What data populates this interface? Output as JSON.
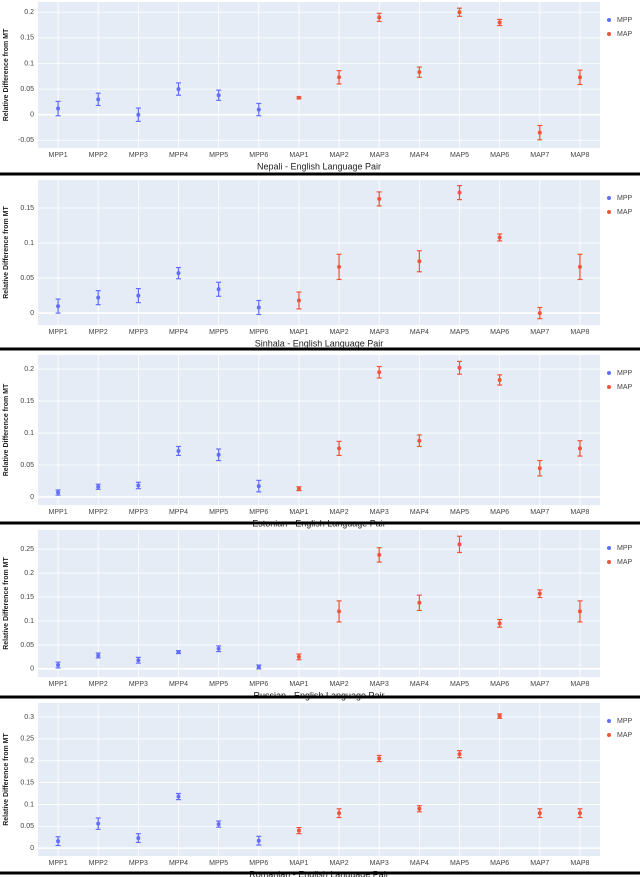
{
  "chart_data": [
    {
      "type": "errorbar",
      "x_label": "Nepali - English Language Pair",
      "y_label": "Relative Difference from MT",
      "categories": [
        "MPP1",
        "MPP2",
        "MPP3",
        "MPP4",
        "MPP5",
        "MPP6",
        "MAP1",
        "MAP2",
        "MAP3",
        "MAP4",
        "MAP5",
        "MAP6",
        "MAP7",
        "MAP8"
      ],
      "series": [
        {
          "name": "MPP",
          "color": "#636efa",
          "values": [
            0.012,
            0.03,
            0.0,
            0.05,
            0.038,
            0.01,
            null,
            null,
            null,
            null,
            null,
            null,
            null,
            null
          ],
          "errors": [
            0.014,
            0.012,
            0.013,
            0.012,
            0.01,
            0.012,
            null,
            null,
            null,
            null,
            null,
            null,
            null,
            null
          ]
        },
        {
          "name": "MAP",
          "color": "#ef553b",
          "values": [
            null,
            null,
            null,
            null,
            null,
            null,
            0.033,
            0.073,
            0.19,
            0.083,
            0.2,
            0.18,
            -0.035,
            0.073
          ],
          "errors": [
            null,
            null,
            null,
            null,
            null,
            null,
            0.002,
            0.013,
            0.008,
            0.01,
            0.008,
            0.006,
            0.014,
            0.014
          ]
        }
      ],
      "ylim": [
        -0.065,
        0.22
      ],
      "yticks": [
        -0.05,
        0,
        0.05,
        0.1,
        0.15,
        0.2
      ],
      "grid": true,
      "legend": "right"
    },
    {
      "type": "errorbar",
      "x_label": "Sinhala - English Language Pair",
      "y_label": "Relative Difference from MT",
      "categories": [
        "MPP1",
        "MPP2",
        "MPP3",
        "MPP4",
        "MPP5",
        "MPP6",
        "MAP1",
        "MAP2",
        "MAP3",
        "MAP4",
        "MAP5",
        "MAP6",
        "MAP7",
        "MAP8"
      ],
      "series": [
        {
          "name": "MPP",
          "color": "#636efa",
          "values": [
            0.01,
            0.022,
            0.025,
            0.057,
            0.034,
            0.008,
            null,
            null,
            null,
            null,
            null,
            null,
            null,
            null
          ],
          "errors": [
            0.01,
            0.01,
            0.01,
            0.008,
            0.01,
            0.01,
            null,
            null,
            null,
            null,
            null,
            null,
            null,
            null
          ]
        },
        {
          "name": "MAP",
          "color": "#ef553b",
          "values": [
            null,
            null,
            null,
            null,
            null,
            null,
            0.018,
            0.066,
            0.163,
            0.074,
            0.172,
            0.108,
            0.0,
            0.066
          ],
          "errors": [
            null,
            null,
            null,
            null,
            null,
            null,
            0.012,
            0.018,
            0.01,
            0.015,
            0.01,
            0.005,
            0.008,
            0.018
          ]
        }
      ],
      "ylim": [
        -0.017,
        0.19
      ],
      "yticks": [
        0,
        0.05,
        0.1,
        0.15
      ],
      "grid": true,
      "legend": "right"
    },
    {
      "type": "errorbar",
      "x_label": "Estonian - English Language Pair",
      "y_label": "Relative Difference from MT",
      "categories": [
        "MPP1",
        "MPP2",
        "MPP3",
        "MPP4",
        "MPP5",
        "MPP6",
        "MAP1",
        "MAP2",
        "MAP3",
        "MAP4",
        "MAP5",
        "MAP6",
        "MAP7",
        "MAP8"
      ],
      "series": [
        {
          "name": "MPP",
          "color": "#636efa",
          "values": [
            0.007,
            0.016,
            0.018,
            0.072,
            0.066,
            0.017,
            null,
            null,
            null,
            null,
            null,
            null,
            null,
            null
          ],
          "errors": [
            0.004,
            0.004,
            0.005,
            0.007,
            0.009,
            0.009,
            null,
            null,
            null,
            null,
            null,
            null,
            null,
            null
          ]
        },
        {
          "name": "MAP",
          "color": "#ef553b",
          "values": [
            null,
            null,
            null,
            null,
            null,
            null,
            0.013,
            0.076,
            0.195,
            0.088,
            0.202,
            0.183,
            0.045,
            0.076
          ],
          "errors": [
            null,
            null,
            null,
            null,
            null,
            null,
            0.003,
            0.011,
            0.009,
            0.009,
            0.01,
            0.008,
            0.012,
            0.012
          ]
        }
      ],
      "ylim": [
        -0.0125,
        0.222
      ],
      "yticks": [
        0,
        0.05,
        0.1,
        0.15,
        0.2
      ],
      "grid": true,
      "legend": "right"
    },
    {
      "type": "errorbar",
      "x_label": "Russian - English Language Pair",
      "y_label": "Relative Difference from MT",
      "categories": [
        "MPP1",
        "MPP2",
        "MPP3",
        "MPP4",
        "MPP5",
        "MPP6",
        "MAP1",
        "MAP2",
        "MAP3",
        "MAP4",
        "MAP5",
        "MAP6",
        "MAP7",
        "MAP8"
      ],
      "series": [
        {
          "name": "MPP",
          "color": "#636efa",
          "values": [
            0.008,
            0.028,
            0.018,
            0.035,
            0.042,
            0.004,
            null,
            null,
            null,
            null,
            null,
            null,
            null,
            null
          ],
          "errors": [
            0.006,
            0.005,
            0.006,
            0.003,
            0.006,
            0.004,
            null,
            null,
            null,
            null,
            null,
            null,
            null,
            null
          ]
        },
        {
          "name": "MAP",
          "color": "#ef553b",
          "values": [
            null,
            null,
            null,
            null,
            null,
            null,
            0.025,
            0.12,
            0.238,
            0.138,
            0.26,
            0.095,
            0.157,
            0.12
          ],
          "errors": [
            null,
            null,
            null,
            null,
            null,
            null,
            0.006,
            0.022,
            0.015,
            0.016,
            0.017,
            0.008,
            0.008,
            0.022
          ]
        }
      ],
      "ylim": [
        -0.017,
        0.29
      ],
      "yticks": [
        0,
        0.05,
        0.1,
        0.15,
        0.2,
        0.25
      ],
      "grid": true,
      "legend": "right"
    },
    {
      "type": "errorbar",
      "x_label": "Romanian - English Language Pair",
      "y_label": "Relative Difference from MT",
      "categories": [
        "MPP1",
        "MPP2",
        "MPP3",
        "MPP4",
        "MPP5",
        "MPP6",
        "MAP1",
        "MAP2",
        "MAP3",
        "MAP4",
        "MAP5",
        "MAP6",
        "MAP7",
        "MAP8"
      ],
      "series": [
        {
          "name": "MPP",
          "color": "#636efa",
          "values": [
            0.016,
            0.056,
            0.023,
            0.118,
            0.055,
            0.017,
            null,
            null,
            null,
            null,
            null,
            null,
            null,
            null
          ],
          "errors": [
            0.01,
            0.013,
            0.01,
            0.007,
            0.007,
            0.01,
            null,
            null,
            null,
            null,
            null,
            null,
            null,
            null
          ]
        },
        {
          "name": "MAP",
          "color": "#ef553b",
          "values": [
            null,
            null,
            null,
            null,
            null,
            null,
            0.04,
            0.08,
            0.205,
            0.09,
            0.215,
            0.302,
            0.08,
            0.08
          ],
          "errors": [
            null,
            null,
            null,
            null,
            null,
            null,
            0.007,
            0.01,
            0.007,
            0.007,
            0.008,
            0.005,
            0.01,
            0.01
          ]
        }
      ],
      "ylim": [
        -0.018,
        0.332
      ],
      "yticks": [
        0,
        0.05,
        0.1,
        0.15,
        0.2,
        0.25,
        0.3
      ],
      "grid": true,
      "legend": "right"
    }
  ]
}
